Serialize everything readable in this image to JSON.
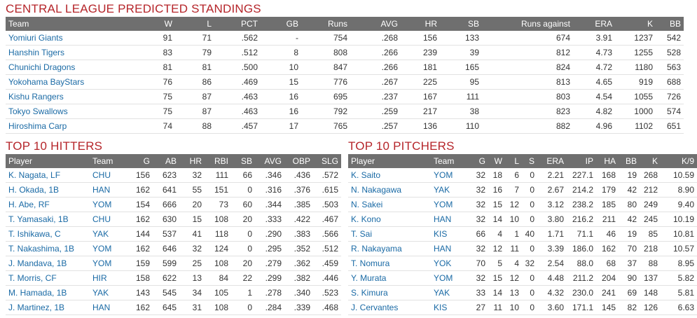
{
  "standings": {
    "title": "CENTRAL LEAGUE PREDICTED STANDINGS",
    "headers": [
      "Team",
      "W",
      "L",
      "PCT",
      "GB",
      "Runs",
      "AVG",
      "HR",
      "SB",
      "Runs against",
      "ERA",
      "K",
      "BB"
    ],
    "rows": [
      [
        "Yomiuri Giants",
        "91",
        "71",
        ".562",
        "-",
        "754",
        ".268",
        "156",
        "133",
        "674",
        "3.91",
        "1237",
        "542"
      ],
      [
        "Hanshin Tigers",
        "83",
        "79",
        ".512",
        "8",
        "808",
        ".266",
        "239",
        "39",
        "812",
        "4.73",
        "1255",
        "528"
      ],
      [
        "Chunichi Dragons",
        "81",
        "81",
        ".500",
        "10",
        "847",
        ".266",
        "181",
        "165",
        "824",
        "4.72",
        "1180",
        "563"
      ],
      [
        "Yokohama BayStars",
        "76",
        "86",
        ".469",
        "15",
        "776",
        ".267",
        "225",
        "95",
        "813",
        "4.65",
        "919",
        "688"
      ],
      [
        "Kishu Rangers",
        "75",
        "87",
        ".463",
        "16",
        "695",
        ".237",
        "167",
        "111",
        "803",
        "4.54",
        "1055",
        "726"
      ],
      [
        "Tokyo Swallows",
        "75",
        "87",
        ".463",
        "16",
        "792",
        ".259",
        "217",
        "38",
        "823",
        "4.82",
        "1000",
        "574"
      ],
      [
        "Hiroshima Carp",
        "74",
        "88",
        ".457",
        "17",
        "765",
        ".257",
        "136",
        "110",
        "882",
        "4.96",
        "1102",
        "651"
      ]
    ]
  },
  "hitters": {
    "title": "TOP 10 HITTERS",
    "headers": [
      "Player",
      "Team",
      "G",
      "AB",
      "HR",
      "RBI",
      "SB",
      "AVG",
      "OBP",
      "SLG"
    ],
    "rows": [
      [
        "K. Nagata, LF",
        "CHU",
        "156",
        "623",
        "32",
        "111",
        "66",
        ".346",
        ".436",
        ".572"
      ],
      [
        "H. Okada, 1B",
        "HAN",
        "162",
        "641",
        "55",
        "151",
        "0",
        ".316",
        ".376",
        ".615"
      ],
      [
        "H. Abe, RF",
        "YOM",
        "154",
        "666",
        "20",
        "73",
        "60",
        ".344",
        ".385",
        ".503"
      ],
      [
        "T. Yamasaki, 1B",
        "CHU",
        "162",
        "630",
        "15",
        "108",
        "20",
        ".333",
        ".422",
        ".467"
      ],
      [
        "T. Ishikawa, C",
        "YAK",
        "144",
        "537",
        "41",
        "118",
        "0",
        ".290",
        ".383",
        ".566"
      ],
      [
        "T. Nakashima, 1B",
        "YOM",
        "162",
        "646",
        "32",
        "124",
        "0",
        ".295",
        ".352",
        ".512"
      ],
      [
        "J. Mandava, 1B",
        "YOM",
        "159",
        "599",
        "25",
        "108",
        "20",
        ".279",
        ".362",
        ".459"
      ],
      [
        "T. Morris, CF",
        "HIR",
        "158",
        "622",
        "13",
        "84",
        "22",
        ".299",
        ".382",
        ".446"
      ],
      [
        "M. Hamada, 1B",
        "YAK",
        "143",
        "545",
        "34",
        "105",
        "1",
        ".278",
        ".340",
        ".523"
      ],
      [
        "J. Martinez, 1B",
        "HAN",
        "162",
        "645",
        "31",
        "108",
        "0",
        ".284",
        ".339",
        ".468"
      ]
    ]
  },
  "pitchers": {
    "title": "TOP 10 PITCHERS",
    "headers": [
      "Player",
      "Team",
      "G",
      "W",
      "L",
      "S",
      "ERA",
      "IP",
      "HA",
      "BB",
      "K",
      "K/9"
    ],
    "rows": [
      [
        "K. Saito",
        "YOM",
        "32",
        "18",
        "6",
        "0",
        "2.21",
        "227.1",
        "168",
        "19",
        "268",
        "10.59"
      ],
      [
        "N. Nakagawa",
        "YAK",
        "32",
        "16",
        "7",
        "0",
        "2.67",
        "214.2",
        "179",
        "42",
        "212",
        "8.90"
      ],
      [
        "N. Sakei",
        "YOM",
        "32",
        "15",
        "12",
        "0",
        "3.12",
        "238.2",
        "185",
        "80",
        "249",
        "9.40"
      ],
      [
        "K. Kono",
        "HAN",
        "32",
        "14",
        "10",
        "0",
        "3.80",
        "216.2",
        "211",
        "42",
        "245",
        "10.19"
      ],
      [
        "T. Sai",
        "KIS",
        "66",
        "4",
        "1",
        "40",
        "1.71",
        "71.1",
        "46",
        "19",
        "85",
        "10.81"
      ],
      [
        "R. Nakayama",
        "HAN",
        "32",
        "12",
        "11",
        "0",
        "3.39",
        "186.0",
        "162",
        "70",
        "218",
        "10.57"
      ],
      [
        "T. Nomura",
        "YOK",
        "70",
        "5",
        "4",
        "32",
        "2.54",
        "88.0",
        "68",
        "37",
        "88",
        "8.95"
      ],
      [
        "Y. Murata",
        "YOM",
        "32",
        "15",
        "12",
        "0",
        "4.48",
        "211.2",
        "204",
        "90",
        "137",
        "5.82"
      ],
      [
        "S. Kimura",
        "YAK",
        "33",
        "14",
        "13",
        "0",
        "4.32",
        "230.0",
        "241",
        "69",
        "148",
        "5.81"
      ],
      [
        "J. Cervantes",
        "KIS",
        "27",
        "11",
        "10",
        "0",
        "3.60",
        "171.1",
        "145",
        "82",
        "126",
        "6.63"
      ]
    ]
  },
  "colors": {
    "title_red": "#b5252a",
    "header_gray": "#6f6f6f",
    "link_blue": "#1a6aa5"
  }
}
